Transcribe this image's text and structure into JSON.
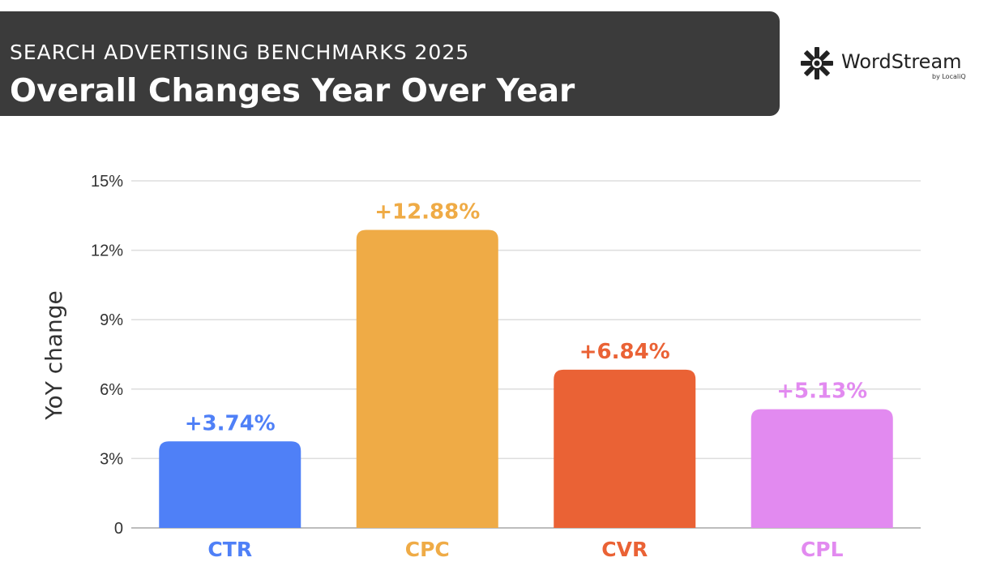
{
  "header": {
    "subtitle": "SEARCH ADVERTISING BENCHMARKS 2025",
    "title": "Overall Changes Year Over Year"
  },
  "logo": {
    "name": "WordStream",
    "tagline": "by LocaliQ"
  },
  "chart_data": {
    "type": "bar",
    "categories": [
      "CTR",
      "CPC",
      "CVR",
      "CPL"
    ],
    "values": [
      3.74,
      12.88,
      6.84,
      5.13
    ],
    "data_labels": [
      "+3.74%",
      "+12.88%",
      "+6.84%",
      "+5.13%"
    ],
    "colors": [
      "#4f80f7",
      "#efab46",
      "#ea6235",
      "#e28af0"
    ],
    "ylabel": "YoY change",
    "ylim": [
      0,
      15
    ],
    "yticks": [
      0,
      3,
      6,
      9,
      12,
      15
    ],
    "ytick_labels": [
      "0",
      "3%",
      "6%",
      "9%",
      "12%",
      "15%"
    ],
    "grid": true
  }
}
